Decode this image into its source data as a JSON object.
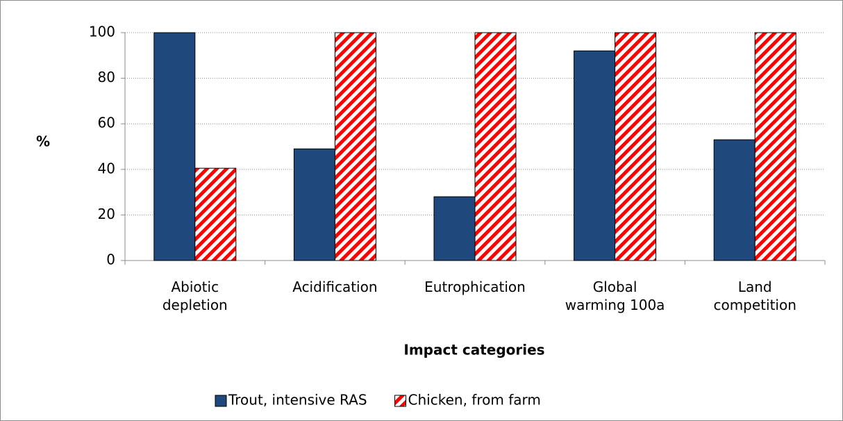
{
  "chart_data": {
    "type": "bar",
    "x_label": "Impact categories",
    "y_label": "%",
    "categories": [
      "Abiotic depletion",
      "Acidification",
      "Eutrophication",
      "Global warming 100a",
      "Land competition"
    ],
    "series": [
      {
        "name": "Trout, intensive RAS",
        "color": "#1f497d",
        "values": [
          100,
          49,
          28,
          92,
          53
        ]
      },
      {
        "name": "Chicken, from farm",
        "color": "#ff0000",
        "pattern": "diagonal-hatch",
        "values": [
          40.5,
          100,
          100,
          100,
          100
        ]
      }
    ],
    "ylim": [
      0,
      100
    ],
    "yticks": [
      0,
      20,
      40,
      60,
      80,
      100
    ],
    "grid": true,
    "legend": "bottom"
  }
}
